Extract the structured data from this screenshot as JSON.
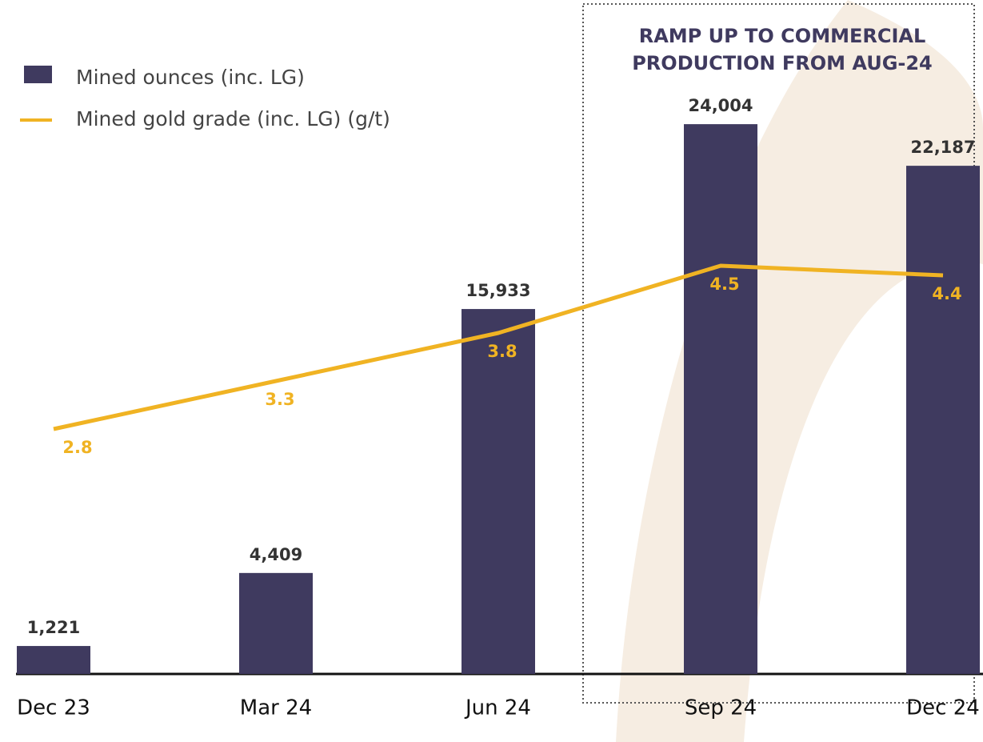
{
  "chart_data": {
    "type": "bar",
    "categories": [
      "Dec 23",
      "Mar 24",
      "Jun 24",
      "Sep 24",
      "Dec 24"
    ],
    "series": [
      {
        "name": "Mined ounces (inc. LG)",
        "type": "bar",
        "color": "#3f3a5f",
        "values": [
          1221,
          4409,
          15933,
          24004,
          22187
        ],
        "value_labels": [
          "1,221",
          "4,409",
          "15,933",
          "24,004",
          "22,187"
        ]
      },
      {
        "name": "Mined gold grade (inc. LG) (g/t)",
        "type": "line",
        "axis": "y2",
        "color": "#f0b323",
        "values": [
          2.8,
          3.3,
          3.8,
          4.5,
          4.4
        ]
      }
    ],
    "ylim": [
      0,
      26000
    ],
    "y2lim": [
      0.25,
      6.45
    ],
    "annotation": [
      "RAMP UP TO COMMERCIAL",
      "PRODUCTION FROM AUG-24"
    ],
    "legend": "upper left"
  }
}
